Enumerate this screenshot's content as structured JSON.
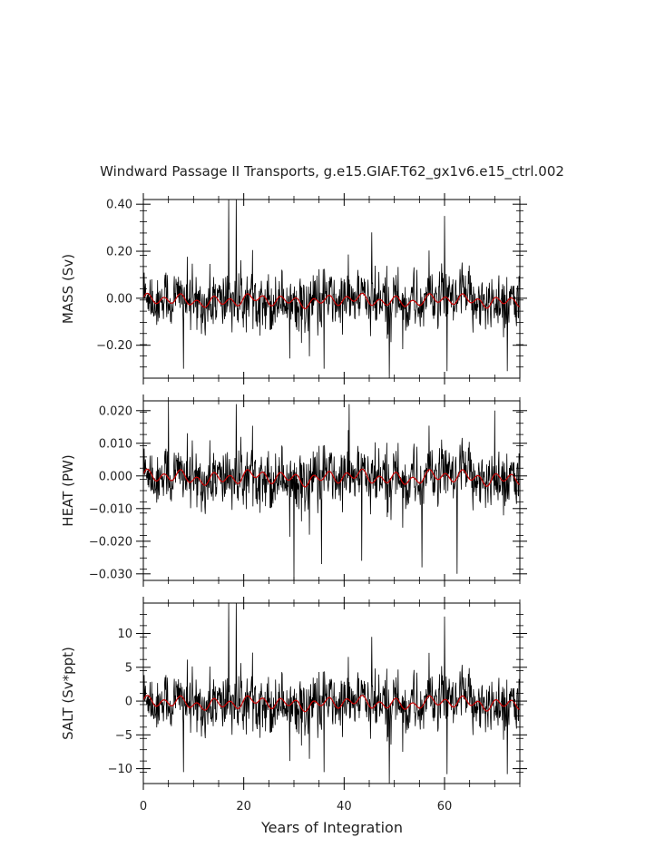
{
  "chart_data": {
    "type": "line",
    "title": "Windward Passage II Transports, g.e15.GIAF.T62_gx1v6.e15_ctrl.002",
    "xlabel": "Years of Integration",
    "xlim": [
      0,
      75
    ],
    "xticks": [
      "0",
      "20",
      "40",
      "60"
    ],
    "series_colors": {
      "monthly": "#000000",
      "smoothed": "#cc0000"
    },
    "panels": [
      {
        "ylabel": "MASS (Sv)",
        "ylim": [
          -0.34,
          0.42
        ],
        "yticks": [
          "0.40",
          "0.20",
          "0.00",
          "−0.20"
        ],
        "noise_sd": 0.075,
        "smooth_amp": 0.03,
        "smooth_mean": -0.01,
        "spikes": [
          [
            17.0,
            0.42
          ],
          [
            18.5,
            0.42
          ],
          [
            45.5,
            0.28
          ],
          [
            60.0,
            0.35
          ],
          [
            36.0,
            -0.3
          ],
          [
            49.0,
            -0.34
          ],
          [
            60.5,
            -0.31
          ],
          [
            72.5,
            -0.31
          ],
          [
            8.0,
            -0.3
          ]
        ]
      },
      {
        "ylabel": "HEAT (PW)",
        "ylim": [
          -0.032,
          0.023
        ],
        "yticks": [
          "0.020",
          "0.010",
          "0.000",
          "−0.010",
          "−0.020",
          "−0.030"
        ],
        "noise_sd": 0.0055,
        "smooth_amp": 0.0025,
        "smooth_mean": -0.0005,
        "spikes": [
          [
            5.0,
            0.022
          ],
          [
            18.5,
            0.022
          ],
          [
            30.0,
            0.021
          ],
          [
            41.0,
            0.022
          ],
          [
            70.0,
            0.02
          ],
          [
            30.0,
            -0.032
          ],
          [
            35.5,
            -0.027
          ],
          [
            43.5,
            -0.026
          ],
          [
            62.5,
            -0.03
          ],
          [
            55.5,
            -0.028
          ]
        ]
      },
      {
        "ylabel": "SALT (Sv*ppt)",
        "ylim": [
          -12.2,
          14.5
        ],
        "yticks": [
          "10",
          "5",
          "0",
          "−5",
          "−10"
        ],
        "noise_sd": 2.6,
        "smooth_amp": 1.1,
        "smooth_mean": -0.3,
        "spikes": [
          [
            17.0,
            14.5
          ],
          [
            18.5,
            14.5
          ],
          [
            45.5,
            9.5
          ],
          [
            60.0,
            12.5
          ],
          [
            36.0,
            -10.5
          ],
          [
            49.0,
            -12.2
          ],
          [
            60.5,
            -10.8
          ],
          [
            72.5,
            -10.8
          ],
          [
            8.0,
            -10.5
          ]
        ]
      }
    ]
  }
}
